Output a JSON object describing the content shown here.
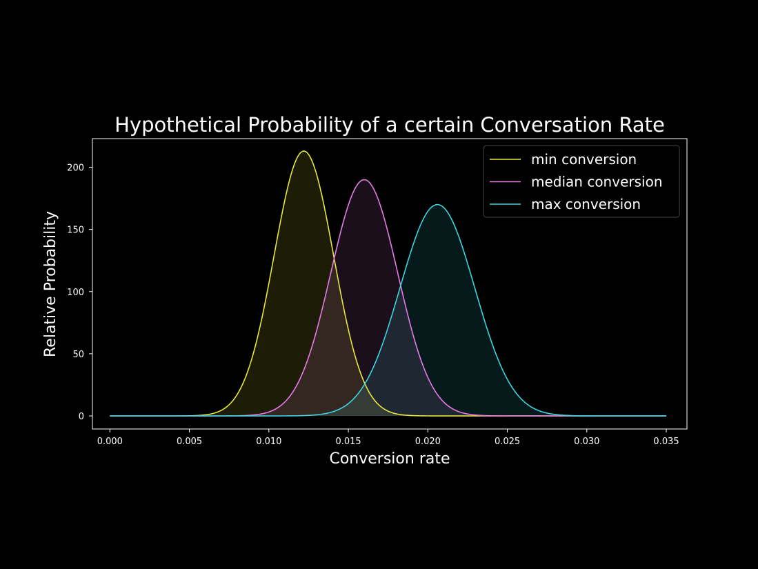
{
  "chart_data": {
    "type": "area",
    "title": "Hypothetical Probability of a certain Conversation Rate",
    "xlabel": "Conversion rate",
    "ylabel": "Relative Probability",
    "xlim": [
      -0.0011,
      0.0363
    ],
    "ylim": [
      -10.5,
      223
    ],
    "x_ticks": [
      "0.000",
      "0.005",
      "0.010",
      "0.015",
      "0.020",
      "0.025",
      "0.030",
      "0.035"
    ],
    "y_ticks": [
      "0",
      "50",
      "100",
      "150",
      "200"
    ],
    "x_range": [
      0.0,
      0.035
    ],
    "grid": false,
    "legend_position": "top-right",
    "background": "#000000",
    "series": [
      {
        "name": "min conversion",
        "color": "#e8e83a",
        "fill": "#1f1f07",
        "distribution": "normal",
        "peak_x": 0.0122,
        "peak_y": 213,
        "sd": 0.00187
      },
      {
        "name": "median conversion",
        "color": "#e87be8",
        "fill": "#200f20",
        "distribution": "normal",
        "peak_x": 0.016,
        "peak_y": 190,
        "sd": 0.0021
      },
      {
        "name": "max conversion",
        "color": "#3ad6e0",
        "fill": "#031e1f",
        "distribution": "normal",
        "peak_x": 0.0206,
        "peak_y": 170,
        "sd": 0.00235
      }
    ]
  }
}
